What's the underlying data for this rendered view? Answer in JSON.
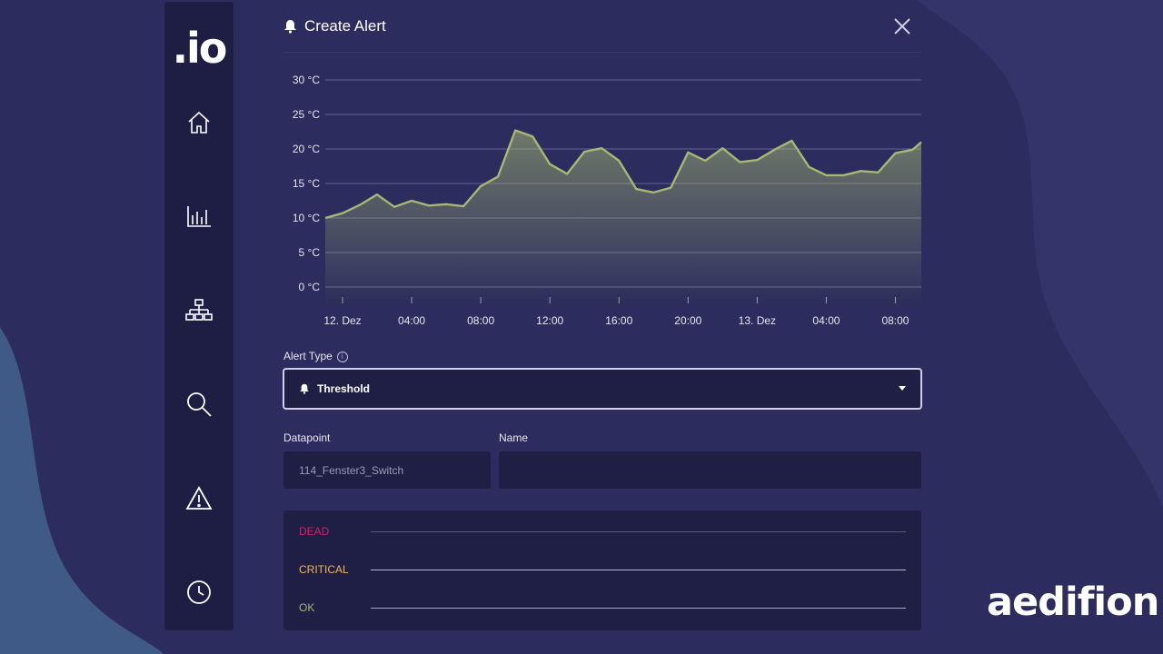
{
  "app": {
    "logo_text": ".io",
    "brand_text": "aedifion"
  },
  "sidebar": {
    "items": [
      {
        "name": "home-icon",
        "label": "Home"
      },
      {
        "name": "chart-icon",
        "label": "Analytics"
      },
      {
        "name": "hierarchy-icon",
        "label": "Structure"
      },
      {
        "name": "search-icon",
        "label": "Search"
      },
      {
        "name": "warning-icon",
        "label": "Alerts"
      },
      {
        "name": "clock-icon",
        "label": "History"
      }
    ]
  },
  "dialog": {
    "title": "Create Alert",
    "title_icon": "bell-icon",
    "close_icon": "close-icon"
  },
  "chart_data": {
    "type": "area",
    "y_unit": "°C",
    "ylim": [
      0,
      30
    ],
    "y_ticks": [
      "0 °C",
      "5 °C",
      "10 °C",
      "15 °C",
      "20 °C",
      "25 °C",
      "30 °C"
    ],
    "y_tick_values": [
      0,
      5,
      10,
      15,
      20,
      25,
      30
    ],
    "x_ticks": [
      "12. Dez",
      "04:00",
      "08:00",
      "12:00",
      "16:00",
      "20:00",
      "13. Dez",
      "04:00",
      "08:00"
    ],
    "x_tick_hours": [
      0,
      4,
      8,
      12,
      16,
      20,
      24,
      28,
      32
    ],
    "xlim_hours": [
      -1,
      33.5
    ],
    "grid": true,
    "line_color": "#a6b872",
    "series": [
      {
        "hours": [
          -1,
          0,
          1,
          2,
          3,
          4,
          5,
          6,
          7,
          8,
          9,
          10,
          11,
          12,
          13,
          14,
          15,
          16,
          17,
          18,
          19,
          20,
          21,
          22,
          23,
          24,
          25,
          26,
          27,
          28,
          29,
          30,
          31,
          32,
          33,
          33.5
        ],
        "values": [
          10,
          10.7,
          11.9,
          13.4,
          11.6,
          12.5,
          11.8,
          12.0,
          11.7,
          14.6,
          16.0,
          22.7,
          21.8,
          17.8,
          16.4,
          19.6,
          20.1,
          18.3,
          14.2,
          13.7,
          14.4,
          19.5,
          18.3,
          20.1,
          18.1,
          18.4,
          19.9,
          21.2,
          17.4,
          16.2,
          16.2,
          16.8,
          16.6,
          19.4,
          19.9,
          21.0
        ]
      }
    ]
  },
  "form": {
    "alert_type_label": "Alert Type",
    "alert_type_value": "Threshold",
    "datapoint_label": "Datapoint",
    "datapoint_value": "114_Fenster3_Switch",
    "name_label": "Name",
    "name_value": ""
  },
  "levels": [
    {
      "label": "DEAD",
      "color": "#d0216a"
    },
    {
      "label": "CRITICAL",
      "color": "#f2b553"
    },
    {
      "label": "OK",
      "color": "#a8b873"
    }
  ]
}
